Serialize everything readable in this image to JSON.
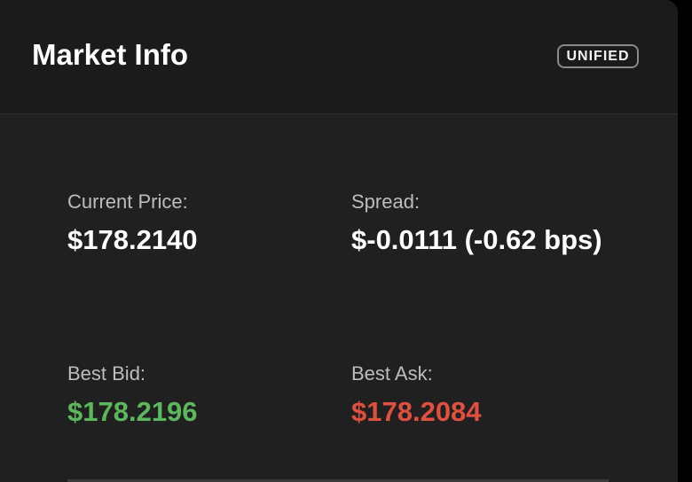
{
  "header": {
    "title": "Market Info",
    "badge": "UNIFIED"
  },
  "fields": {
    "current_price": {
      "label": "Current Price:",
      "value": "$178.2140"
    },
    "spread": {
      "label": "Spread:",
      "value": "$-0.0111 (-0.62 bps)"
    },
    "best_bid": {
      "label": "Best Bid:",
      "value": "$178.2196"
    },
    "best_ask": {
      "label": "Best Ask:",
      "value": "$178.2084"
    }
  },
  "colors": {
    "bid": "#5cb85c",
    "ask": "#e0503f",
    "background": "#202020",
    "header_background": "#1b1b1b"
  }
}
